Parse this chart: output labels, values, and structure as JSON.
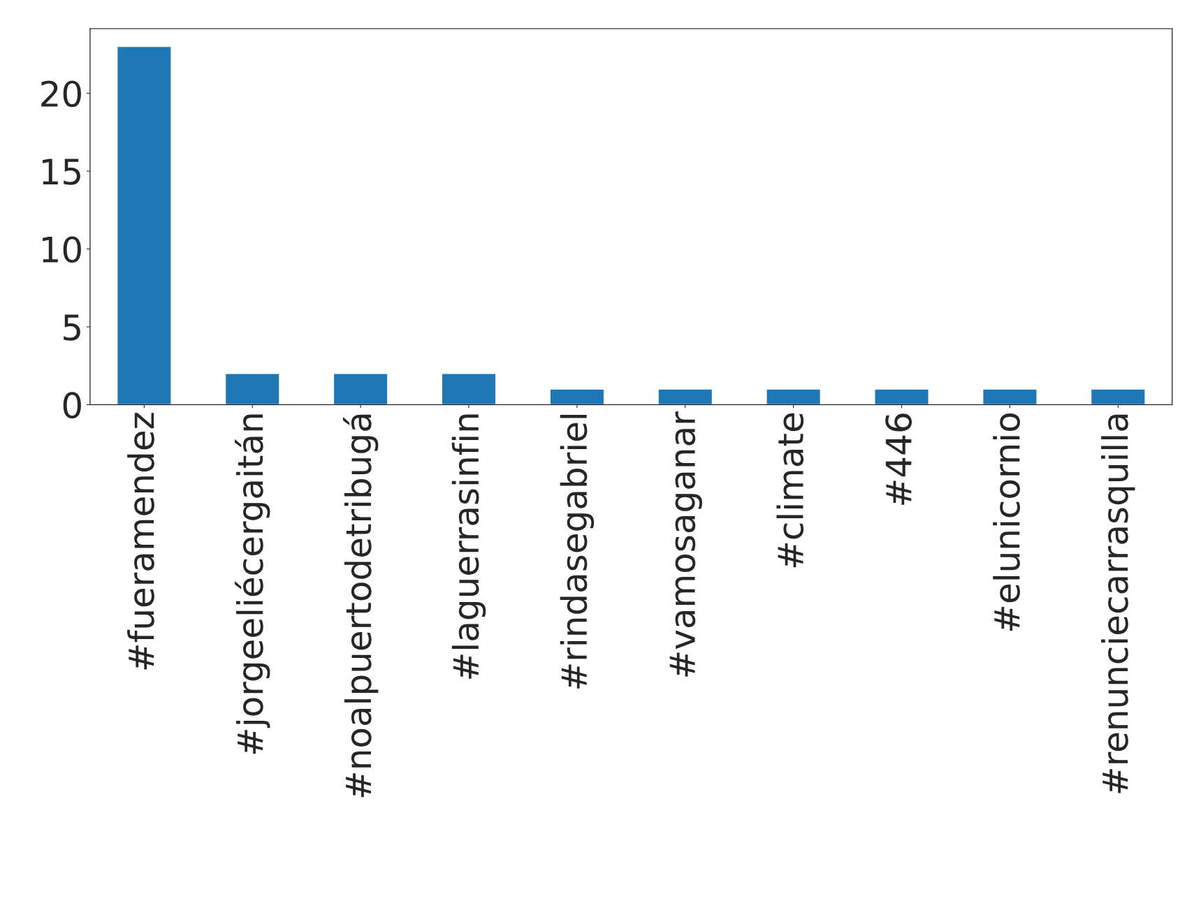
{
  "chart_data": {
    "type": "bar",
    "categories": [
      "#fueramendez",
      "#jorgeeliécergaitán",
      "#noalpuertodetribugá",
      "#laguerrasinfin",
      "#rindasegabriel",
      "#vamosaganar",
      "#climate",
      "#446",
      "#elunicornio",
      "#renunciecarrasquilla"
    ],
    "values": [
      23,
      2,
      2,
      2,
      1,
      1,
      1,
      1,
      1,
      1
    ],
    "color": "#1f77b4",
    "ylim": [
      0,
      24.15
    ],
    "yticks": [
      0,
      5,
      10,
      15,
      20
    ],
    "grid": false,
    "legend": false
  }
}
